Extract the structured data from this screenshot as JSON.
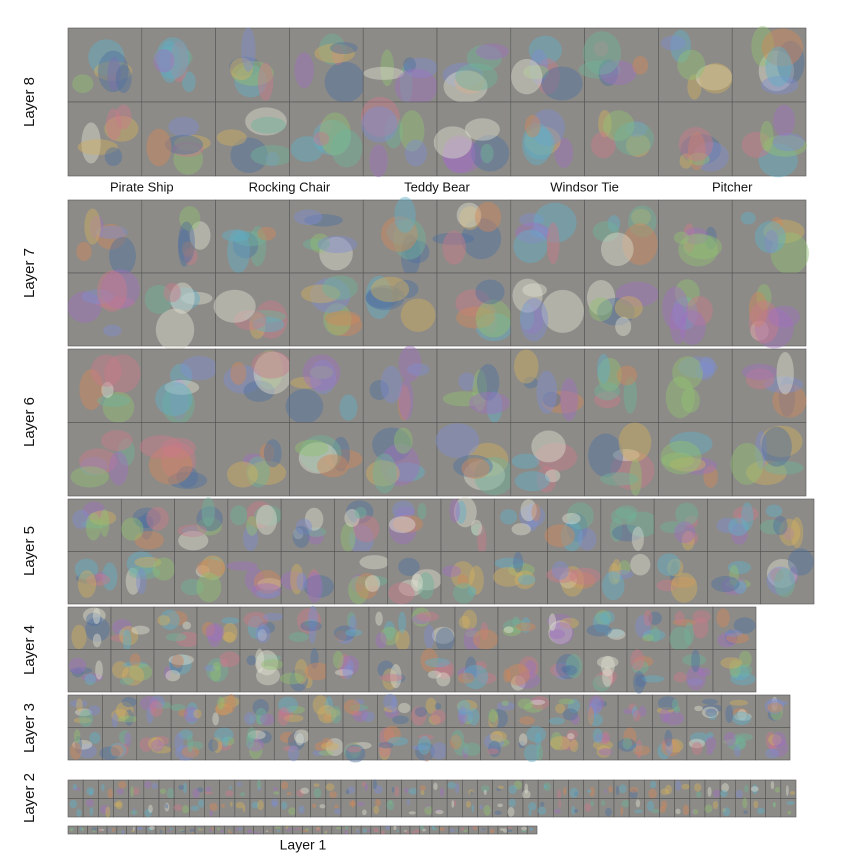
{
  "layers": [
    {
      "label": "Layer 8"
    },
    {
      "label": "Layer 7"
    },
    {
      "label": "Layer 6"
    },
    {
      "label": "Layer 5"
    },
    {
      "label": "Layer 4"
    },
    {
      "label": "Layer 3"
    },
    {
      "label": "Layer 2"
    },
    {
      "label": "Layer 1"
    }
  ],
  "classes": [
    {
      "label": "Pirate Ship"
    },
    {
      "label": "Rocking Chair"
    },
    {
      "label": "Teddy Bear"
    },
    {
      "label": "Windsor Tie"
    },
    {
      "label": "Pitcher"
    }
  ]
}
